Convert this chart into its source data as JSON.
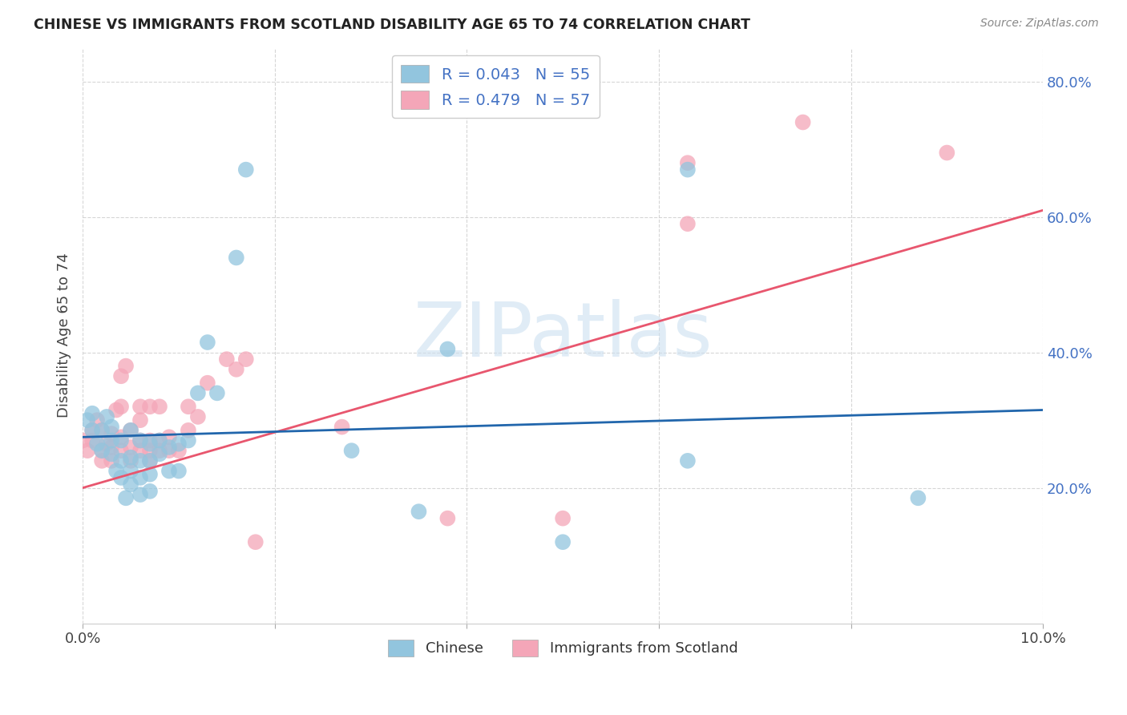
{
  "title": "CHINESE VS IMMIGRANTS FROM SCOTLAND DISABILITY AGE 65 TO 74 CORRELATION CHART",
  "source": "Source: ZipAtlas.com",
  "ylabel": "Disability Age 65 to 74",
  "xlim": [
    0.0,
    0.1
  ],
  "ylim": [
    0.0,
    0.85
  ],
  "xtick_positions": [
    0.0,
    0.02,
    0.04,
    0.06,
    0.08,
    0.1
  ],
  "xtick_labels": [
    "0.0%",
    "",
    "",
    "",
    "",
    "10.0%"
  ],
  "ytick_positions": [
    0.2,
    0.4,
    0.6,
    0.8
  ],
  "ytick_labels": [
    "20.0%",
    "40.0%",
    "60.0%",
    "80.0%"
  ],
  "watermark": "ZIPatlas",
  "color_chinese": "#92c5de",
  "color_scotland": "#f4a6b8",
  "color_line_chinese": "#2166ac",
  "color_line_scotland": "#e8566e",
  "chinese_line_x0": 0.0,
  "chinese_line_y0": 0.275,
  "chinese_line_x1": 0.1,
  "chinese_line_y1": 0.315,
  "scotland_line_x0": 0.0,
  "scotland_line_y0": 0.2,
  "scotland_line_x1": 0.1,
  "scotland_line_y1": 0.61,
  "chinese_x": [
    0.0005,
    0.001,
    0.001,
    0.0015,
    0.002,
    0.002,
    0.0025,
    0.003,
    0.003,
    0.003,
    0.0035,
    0.004,
    0.004,
    0.004,
    0.0045,
    0.005,
    0.005,
    0.005,
    0.005,
    0.006,
    0.006,
    0.006,
    0.006,
    0.007,
    0.007,
    0.007,
    0.007,
    0.008,
    0.008,
    0.009,
    0.009,
    0.01,
    0.01,
    0.011,
    0.012,
    0.013,
    0.014,
    0.016,
    0.017,
    0.028,
    0.035,
    0.038,
    0.05,
    0.063,
    0.063,
    0.087
  ],
  "chinese_y": [
    0.3,
    0.285,
    0.31,
    0.265,
    0.255,
    0.285,
    0.305,
    0.25,
    0.27,
    0.29,
    0.225,
    0.215,
    0.24,
    0.27,
    0.185,
    0.205,
    0.225,
    0.245,
    0.285,
    0.19,
    0.215,
    0.24,
    0.27,
    0.195,
    0.22,
    0.24,
    0.265,
    0.25,
    0.27,
    0.225,
    0.26,
    0.225,
    0.265,
    0.27,
    0.34,
    0.415,
    0.34,
    0.54,
    0.67,
    0.255,
    0.165,
    0.405,
    0.12,
    0.24,
    0.67,
    0.185
  ],
  "scotland_x": [
    0.0,
    0.0005,
    0.001,
    0.001,
    0.0015,
    0.002,
    0.002,
    0.002,
    0.0025,
    0.003,
    0.003,
    0.003,
    0.0035,
    0.004,
    0.004,
    0.004,
    0.004,
    0.0045,
    0.005,
    0.005,
    0.005,
    0.006,
    0.006,
    0.006,
    0.006,
    0.007,
    0.007,
    0.007,
    0.007,
    0.008,
    0.008,
    0.008,
    0.009,
    0.009,
    0.01,
    0.011,
    0.011,
    0.012,
    0.013,
    0.015,
    0.016,
    0.017,
    0.018,
    0.027,
    0.038,
    0.05,
    0.063,
    0.063,
    0.075,
    0.09
  ],
  "scotland_y": [
    0.27,
    0.255,
    0.27,
    0.285,
    0.3,
    0.24,
    0.255,
    0.285,
    0.265,
    0.24,
    0.26,
    0.28,
    0.315,
    0.255,
    0.275,
    0.32,
    0.365,
    0.38,
    0.24,
    0.26,
    0.285,
    0.255,
    0.27,
    0.3,
    0.32,
    0.24,
    0.255,
    0.27,
    0.32,
    0.255,
    0.27,
    0.32,
    0.255,
    0.275,
    0.255,
    0.285,
    0.32,
    0.305,
    0.355,
    0.39,
    0.375,
    0.39,
    0.12,
    0.29,
    0.155,
    0.155,
    0.59,
    0.68,
    0.74,
    0.695
  ]
}
